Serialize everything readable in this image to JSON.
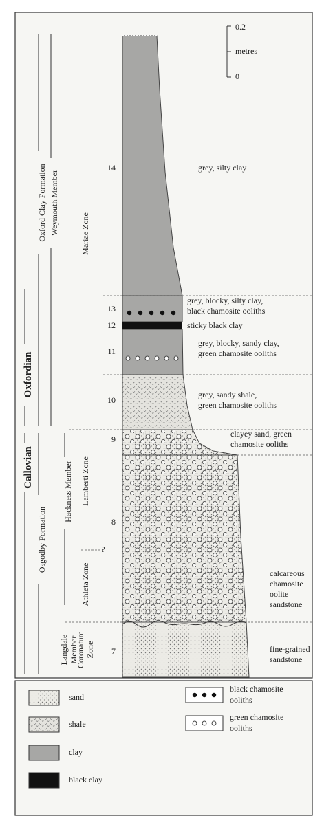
{
  "scale": {
    "top": "0.2",
    "unit": "metres",
    "bottom": "0"
  },
  "beds": [
    {
      "number": "14",
      "description": [
        "grey, silty clay"
      ]
    },
    {
      "number": "13",
      "description": [
        "grey, blocky, silty clay,",
        "black chamosite ooliths"
      ]
    },
    {
      "number": "12",
      "description": [
        "sticky black clay"
      ]
    },
    {
      "number": "11",
      "description": [
        "grey, blocky, sandy clay,",
        "green chamosite ooliths"
      ]
    },
    {
      "number": "10",
      "description": [
        "grey, sandy shale,",
        "green chamosite ooliths"
      ]
    },
    {
      "number": "9",
      "description": [
        "clayey sand, green",
        "chamosite ooliths"
      ]
    },
    {
      "number": "8",
      "description": [
        "calcareous",
        "chamosite",
        "oolite",
        "sandstone"
      ]
    },
    {
      "number": "7",
      "description": [
        "fine-grained",
        "sandstone"
      ]
    }
  ],
  "stages": [
    [
      "Oxfordian"
    ],
    [
      "Callovian"
    ]
  ],
  "formations": [
    [
      "Oxford Clay Formation"
    ],
    [
      "Osgodby Formation"
    ]
  ],
  "members": [
    [
      "Weymouth Member"
    ],
    [
      "Hackness Member"
    ],
    [
      "Langdale",
      "Member"
    ]
  ],
  "zones": [
    [
      "Mariae Zone"
    ],
    [
      "Lamberti Zone"
    ],
    [
      "Athleta Zone"
    ],
    [
      "Coronatum",
      "Zone"
    ]
  ],
  "zone_uncertainty": "?",
  "legend": [
    [
      "sand"
    ],
    [
      "shale"
    ],
    [
      "clay"
    ],
    [
      "black clay"
    ],
    [
      "black chamosite",
      "ooliths"
    ],
    [
      "green chamosite",
      "ooliths"
    ]
  ]
}
